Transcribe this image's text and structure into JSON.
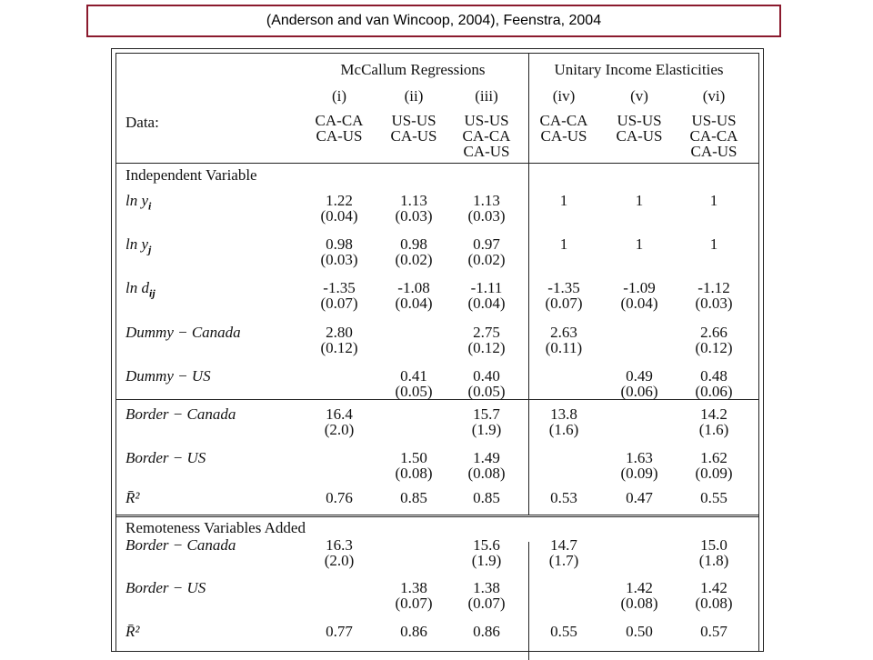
{
  "caption": "(Anderson and van Wincoop, 2004), Feenstra, 2004",
  "table": {
    "groups": [
      "McCallum Regressions",
      "Unitary Income Elasticities"
    ],
    "columns": [
      "(i)",
      "(ii)",
      "(iii)",
      "(iv)",
      "(v)",
      "(vi)"
    ],
    "data_label": "Data:",
    "data_row": [
      [
        "CA-CA",
        "CA-US"
      ],
      [
        "US-US",
        "CA-US"
      ],
      [
        "US-US",
        "CA-CA",
        "CA-US"
      ],
      [
        "CA-CA",
        "CA-US"
      ],
      [
        "US-US",
        "CA-US"
      ],
      [
        "US-US",
        "CA-CA",
        "CA-US"
      ]
    ],
    "section1": "Independent Variable",
    "section2": "Remoteness Variables Added",
    "rows": [
      {
        "label": "ln y_i",
        "label_html_main": "ln y",
        "label_sub": "i",
        "vals": [
          [
            "1.22",
            "(0.04)"
          ],
          [
            "1.13",
            "(0.03)"
          ],
          [
            "1.13",
            "(0.03)"
          ],
          [
            "1",
            ""
          ],
          [
            "1",
            ""
          ],
          [
            "1",
            ""
          ]
        ]
      },
      {
        "label": "ln y_j",
        "label_html_main": "ln y",
        "label_sub": "j",
        "vals": [
          [
            "0.98",
            "(0.03)"
          ],
          [
            "0.98",
            "(0.02)"
          ],
          [
            "0.97",
            "(0.02)"
          ],
          [
            "1",
            ""
          ],
          [
            "1",
            ""
          ],
          [
            "1",
            ""
          ]
        ]
      },
      {
        "label": "ln d_ij",
        "label_html_main": "ln d",
        "label_sub": "ij",
        "vals": [
          [
            "-1.35",
            "(0.07)"
          ],
          [
            "-1.08",
            "(0.04)"
          ],
          [
            "-1.11",
            "(0.04)"
          ],
          [
            "-1.35",
            "(0.07)"
          ],
          [
            "-1.09",
            "(0.04)"
          ],
          [
            "-1.12",
            "(0.03)"
          ]
        ]
      },
      {
        "label": "Dummy − Canada",
        "label_html_main": "Dummy − Canada",
        "label_sub": "",
        "vals": [
          [
            "2.80",
            "(0.12)"
          ],
          [
            "",
            ""
          ],
          [
            "2.75",
            "(0.12)"
          ],
          [
            "2.63",
            "(0.11)"
          ],
          [
            "",
            ""
          ],
          [
            "2.66",
            "(0.12)"
          ]
        ]
      },
      {
        "label": "Dummy − US",
        "label_html_main": "Dummy − US",
        "label_sub": "",
        "vals": [
          [
            "",
            ""
          ],
          [
            "0.41",
            "(0.05)"
          ],
          [
            "0.40",
            "(0.05)"
          ],
          [
            "",
            ""
          ],
          [
            "0.49",
            "(0.06)"
          ],
          [
            "0.48",
            "(0.06)"
          ]
        ]
      },
      {
        "label": "Border − Canada",
        "label_html_main": "Border − Canada",
        "label_sub": "",
        "vals": [
          [
            "16.4",
            "(2.0)"
          ],
          [
            "",
            ""
          ],
          [
            "15.7",
            "(1.9)"
          ],
          [
            "13.8",
            "(1.6)"
          ],
          [
            "",
            ""
          ],
          [
            "14.2",
            "(1.6)"
          ]
        ]
      },
      {
        "label": "Border − US",
        "label_html_main": "Border − US",
        "label_sub": "",
        "vals": [
          [
            "",
            ""
          ],
          [
            "1.50",
            "(0.08)"
          ],
          [
            "1.49",
            "(0.08)"
          ],
          [
            "",
            ""
          ],
          [
            "1.63",
            "(0.09)"
          ],
          [
            "1.62",
            "(0.09)"
          ]
        ]
      },
      {
        "label": "R̄²",
        "label_html_main": "R̄²",
        "label_sub": "",
        "vals": [
          [
            "0.76",
            ""
          ],
          [
            "0.85",
            ""
          ],
          [
            "0.85",
            ""
          ],
          [
            "0.53",
            ""
          ],
          [
            "0.47",
            ""
          ],
          [
            "0.55",
            ""
          ]
        ]
      },
      {
        "label": "Border − Canada",
        "label_html_main": "Border − Canada",
        "label_sub": "",
        "vals": [
          [
            "16.3",
            "(2.0)"
          ],
          [
            "",
            ""
          ],
          [
            "15.6",
            "(1.9)"
          ],
          [
            "14.7",
            "(1.7)"
          ],
          [
            "",
            ""
          ],
          [
            "15.0",
            "(1.8)"
          ]
        ]
      },
      {
        "label": "Border − US",
        "label_html_main": "Border − US",
        "label_sub": "",
        "vals": [
          [
            "",
            ""
          ],
          [
            "1.38",
            "(0.07)"
          ],
          [
            "1.38",
            "(0.07)"
          ],
          [
            "",
            ""
          ],
          [
            "1.42",
            "(0.08)"
          ],
          [
            "1.42",
            "(0.08)"
          ]
        ]
      },
      {
        "label": "R̄²",
        "label_html_main": "R̄²",
        "label_sub": "",
        "vals": [
          [
            "0.77",
            ""
          ],
          [
            "0.86",
            ""
          ],
          [
            "0.86",
            ""
          ],
          [
            "0.55",
            ""
          ],
          [
            "0.50",
            ""
          ],
          [
            "0.57",
            ""
          ]
        ]
      }
    ]
  }
}
